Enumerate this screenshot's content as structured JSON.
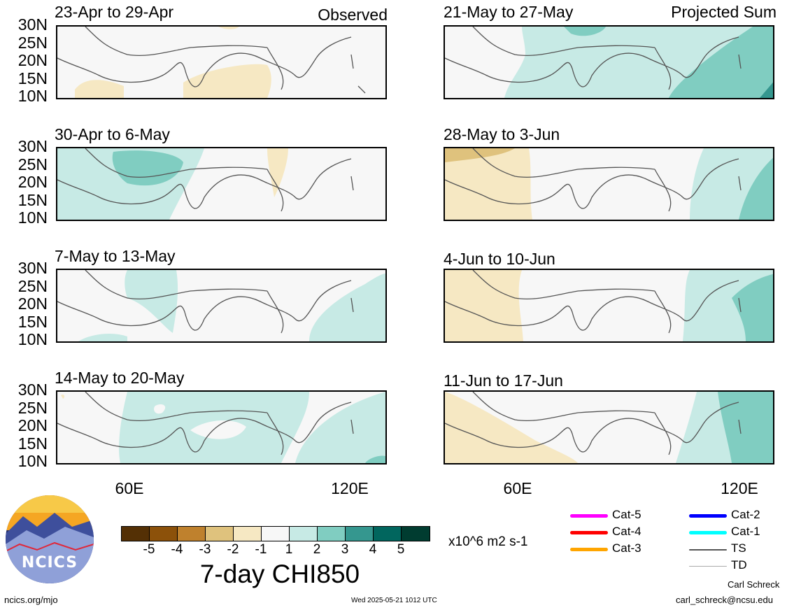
{
  "panels_left": [
    {
      "title": "23-Apr to 29-Apr",
      "label": "Observed"
    },
    {
      "title": "30-Apr to 6-May",
      "label": ""
    },
    {
      "title": "7-May to 13-May",
      "label": ""
    },
    {
      "title": "14-May to 20-May",
      "label": ""
    }
  ],
  "panels_right": [
    {
      "title": "21-May to 27-May",
      "label": "Projected Sum"
    },
    {
      "title": "28-May to 3-Jun",
      "label": ""
    },
    {
      "title": "4-Jun to 10-Jun",
      "label": ""
    },
    {
      "title": "11-Jun to 17-Jun",
      "label": ""
    }
  ],
  "y_labels": [
    "30N",
    "25N",
    "20N",
    "15N",
    "10N"
  ],
  "x_labels": [
    "60E",
    "120E"
  ],
  "colorbar": {
    "ticks": [
      "-5",
      "-4",
      "-3",
      "-2",
      "-1",
      "1",
      "2",
      "3",
      "4",
      "5"
    ],
    "colors": [
      "#543005",
      "#8c510a",
      "#bf812d",
      "#dfc27d",
      "#f6e8c3",
      "#f7f7f7",
      "#c7eae5",
      "#80cdc1",
      "#35978f",
      "#01665e",
      "#003c30"
    ],
    "units": "x10^6 m2 s-1",
    "title": "7-day CHI850"
  },
  "legend": [
    {
      "label": "Cat-5",
      "color": "#ff00ff"
    },
    {
      "label": "Cat-4",
      "color": "#ff0000"
    },
    {
      "label": "Cat-3",
      "color": "#ffa500"
    },
    {
      "label": "Cat-2",
      "color": "#0000ff"
    },
    {
      "label": "Cat-1",
      "color": "#00ffff"
    },
    {
      "label": "TS",
      "color": "#555555"
    },
    {
      "label": "TD",
      "color": "#aaaaaa"
    }
  ],
  "logo_text": "NCICS",
  "footer": {
    "website": "ncics.org/mjo",
    "timestamp": "Wed 2025-05-21 1012 UTC",
    "author": "Carl Schreck",
    "email": "carl_schreck@ncsu.edu"
  }
}
